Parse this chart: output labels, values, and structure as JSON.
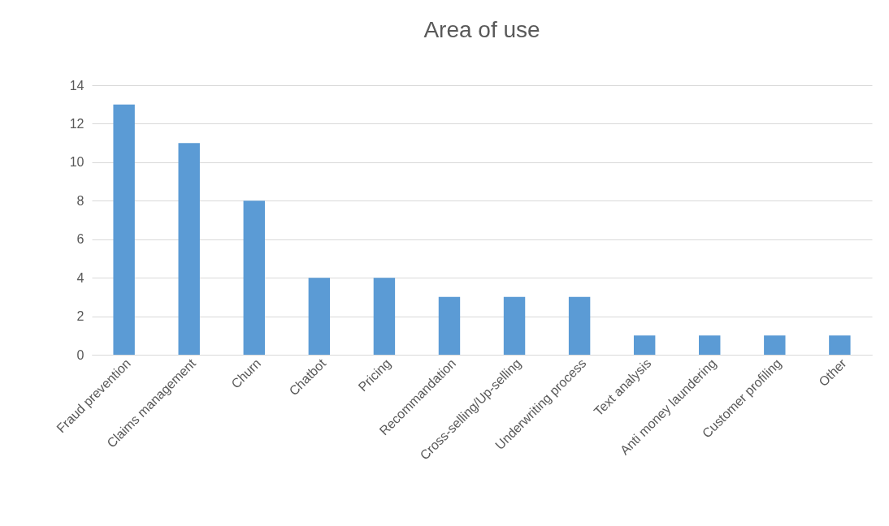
{
  "chart_data": {
    "type": "bar",
    "title": "Area of use",
    "categories": [
      "Fraud prevention",
      "Claims management",
      "Churn",
      "Chatbot",
      "Pricing",
      "Recommandation",
      "Cross-selling/Up-selling",
      "Underwriting process",
      "Text analysis",
      "Anti money laundering",
      "Customer profiling",
      "Other"
    ],
    "values": [
      13,
      11,
      8,
      4,
      4,
      3,
      3,
      3,
      1,
      1,
      1,
      1
    ],
    "color": "#5b9bd5",
    "ylim": [
      0,
      14
    ],
    "yticks": [
      0,
      2,
      4,
      6,
      8,
      10,
      12,
      14
    ],
    "grid": "y"
  }
}
